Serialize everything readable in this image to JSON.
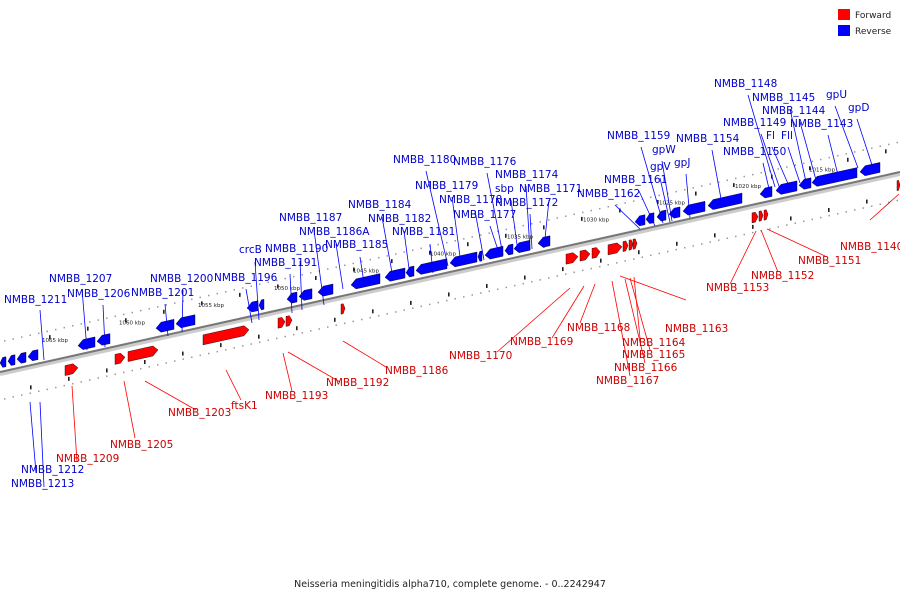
{
  "caption": "Neisseria meningitidis alpha710, complete genome. - 0..2242947",
  "legend": [
    {
      "label": "Forward",
      "color": "#ff0000"
    },
    {
      "label": "Reverse",
      "color": "#0000ff"
    }
  ],
  "colors": {
    "forward": "#ff0000",
    "reverse": "#0000ff",
    "axis": "#888888"
  },
  "ticks": [
    "1065 kbp",
    "1060 kbp",
    "1055 kbp",
    "1050 kbp",
    "1045 kbp",
    "1040 kbp",
    "1035 kbp",
    "1030 kbp",
    "1025 kbp",
    "1020 kbp",
    "1015 kbp"
  ],
  "forward_labels": [
    "NMBB_1209",
    "NMBB_1205",
    "NMBB_1203",
    "ftsK1",
    "NMBB_1193",
    "NMBB_1192",
    "NMBB_1186",
    "NMBB_1170",
    "NMBB_1169",
    "NMBB_1168",
    "NMBB_1167",
    "NMBB_1166",
    "NMBB_1165",
    "NMBB_1164",
    "NMBB_1163",
    "NMBB_1153",
    "NMBB_1152",
    "NMBB_1151",
    "NMBB_1140"
  ],
  "reverse_labels": [
    "NMBB_1213",
    "NMBB_1212",
    "NMBB_1211",
    "NMBB_1207",
    "NMBB_1206",
    "NMBB_1201",
    "NMBB_1200",
    "NMBB_1196",
    "crcB",
    "NMBB_1191",
    "NMBB_1190",
    "NMBB_1187",
    "NMBB_1186A",
    "NMBB_1185",
    "NMBB_1184",
    "NMBB_1182",
    "NMBB_1181",
    "NMBB_1180",
    "NMBB_1179",
    "NMBB_1178",
    "NMBB_1177",
    "NMBB_1176",
    "sbp",
    "NMBB_1174",
    "NMBB_1172",
    "NMBB_1171",
    "NMBB_1162",
    "NMBB_1161",
    "NMBB_1159",
    "gpV",
    "gpW",
    "gpJ",
    "NMBB_1154",
    "NMBB_1150",
    "NMBB_1149",
    "Fl",
    "Fll",
    "NMBB_1148",
    "NMBB_1145",
    "NMBB_1144",
    "NMBB_1143",
    "gpU",
    "gpD"
  ]
}
